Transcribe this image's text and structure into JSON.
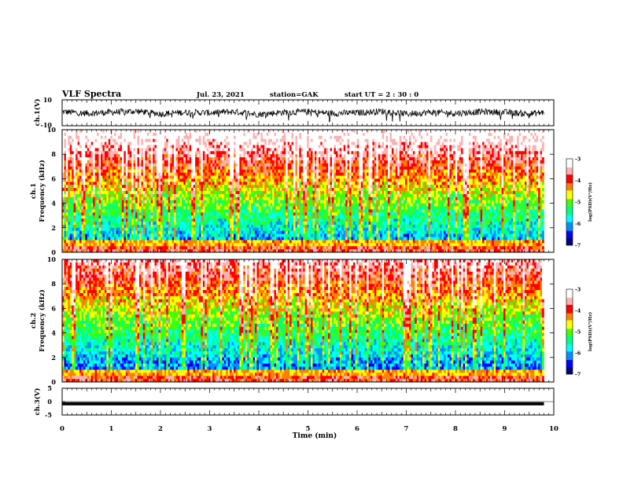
{
  "header": {
    "title": "VLF Spectra",
    "date": "Jul. 23, 2021",
    "station": "station=GAK",
    "start_time": "start UT = 2 : 30 : 0"
  },
  "colors": {
    "frame": "#000000",
    "colormap": [
      "#000080",
      "#0000ff",
      "#0090ff",
      "#00ffff",
      "#00ff80",
      "#40ff00",
      "#ffff00",
      "#ff8000",
      "#ff0000",
      "#ffb0b0",
      "#ffffff"
    ]
  },
  "chart_data": [
    {
      "type": "line",
      "id": "ch1_waveform",
      "ylabel": "ch.1(V)",
      "ylim": [
        -10,
        10
      ],
      "yticks": [
        "10",
        "-10"
      ],
      "x": [
        0,
        0.5,
        1,
        1.5,
        2,
        2.5,
        3,
        3.5,
        4,
        4.5,
        5,
        5.5,
        6,
        6.5,
        7,
        7.5,
        8,
        8.5,
        9,
        9.5,
        9.8
      ],
      "values": [
        2,
        -1,
        1,
        3,
        -2,
        1,
        0,
        2,
        -3,
        1,
        2,
        -1,
        0,
        3,
        -2,
        1,
        -1,
        2,
        1,
        -2,
        1
      ]
    },
    {
      "type": "heatmap",
      "id": "ch1_spectrogram",
      "ylabel": "ch.1\nFrequency (kHz)",
      "ylim": [
        0,
        10
      ],
      "yticks": [
        "0",
        "2",
        "4",
        "6",
        "8",
        "10"
      ],
      "colorbar": {
        "label": "log(PSD)(V²/Hz)",
        "range": [
          -7,
          -3
        ],
        "ticks": [
          "-3",
          "-4",
          "-5",
          "-6",
          "-7"
        ]
      }
    },
    {
      "type": "heatmap",
      "id": "ch2_spectrogram",
      "ylabel": "ch.2\nFrequency (kHz)",
      "ylim": [
        0,
        10
      ],
      "yticks": [
        "0",
        "2",
        "4",
        "6",
        "8",
        "10"
      ],
      "colorbar": {
        "label": "log(PSD)(V²/Hz)",
        "range": [
          -7,
          -3
        ],
        "ticks": [
          "-3",
          "-4",
          "-5",
          "-6",
          "-7"
        ]
      }
    },
    {
      "type": "line",
      "id": "ch3_waveform",
      "ylabel": "ch.3(V)",
      "ylim": [
        -5,
        5
      ],
      "yticks": [
        "5",
        "0",
        "-5"
      ],
      "x": [
        0,
        9.8
      ],
      "values": [
        -0.8,
        -0.8
      ]
    }
  ],
  "xaxis": {
    "label": "Time (min)",
    "range": [
      0,
      10
    ],
    "ticks": [
      "0",
      "1",
      "2",
      "3",
      "4",
      "5",
      "6",
      "7",
      "8",
      "9",
      "10"
    ],
    "data_end": 9.8
  }
}
